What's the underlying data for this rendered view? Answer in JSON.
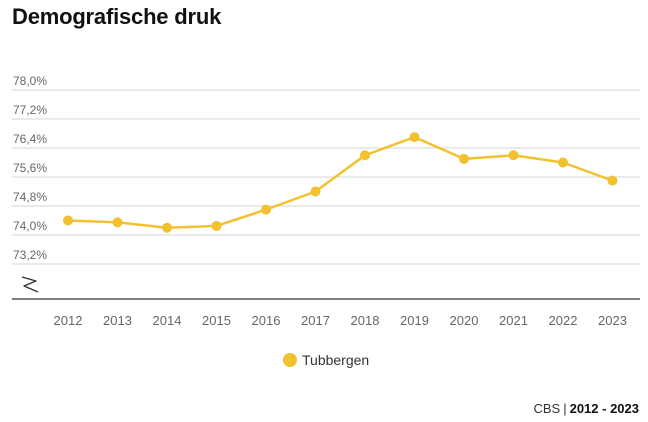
{
  "title": "Demografische druk",
  "colors": {
    "series": "#F2C12E",
    "grid": "#d6d6d6",
    "axis": "#333333",
    "tick_text": "#666666"
  },
  "source": {
    "label": "CBS",
    "separator": "|",
    "period": "2012 - 2023"
  },
  "chart_data": {
    "type": "line",
    "title": "Demografische druk",
    "x": [
      "2012",
      "2013",
      "2014",
      "2015",
      "2016",
      "2017",
      "2018",
      "2019",
      "2020",
      "2021",
      "2022",
      "2023"
    ],
    "series": [
      {
        "name": "Tubbergen",
        "values": [
          74.4,
          74.35,
          74.2,
          74.25,
          74.7,
          75.2,
          76.2,
          76.7,
          76.1,
          76.2,
          76.0,
          75.5
        ]
      }
    ],
    "ylim": [
      72.4,
      78.0
    ],
    "yticks": [
      78.0,
      77.2,
      76.4,
      75.6,
      74.8,
      74.0,
      73.2
    ],
    "ytick_labels": [
      "78,0%",
      "77,2%",
      "76,4%",
      "75,6%",
      "74,8%",
      "74,0%",
      "73,2%"
    ],
    "axis_break": true,
    "grid": true,
    "legend": "bottom-center"
  }
}
